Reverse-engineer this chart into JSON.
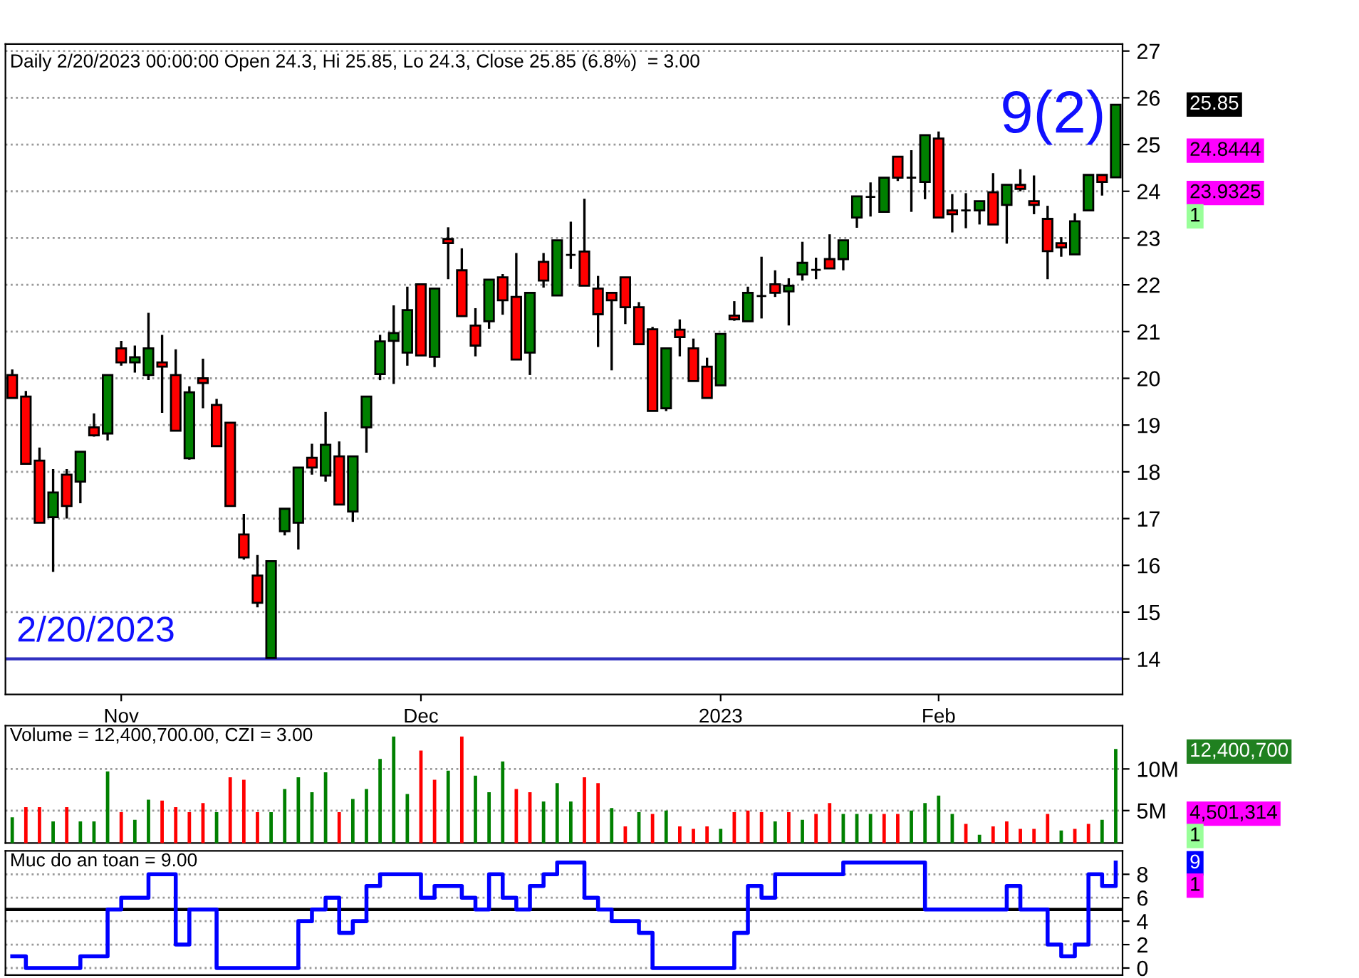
{
  "chart_data": [
    {
      "type": "candlestick",
      "title": "Daily 2/20/2023 00:00:00 Open 24.3, Hi 25.85, Lo 24.3, Close 25.85 (6.8%)  = 3.00",
      "categories": [
        null,
        null,
        null,
        null,
        null,
        null,
        null,
        null,
        "Nov",
        null,
        null,
        null,
        null,
        null,
        null,
        null,
        null,
        null,
        null,
        null,
        null,
        null,
        null,
        null,
        null,
        null,
        null,
        null,
        null,
        null,
        "Dec",
        null,
        null,
        null,
        null,
        null,
        null,
        null,
        null,
        null,
        null,
        null,
        null,
        null,
        null,
        null,
        null,
        null,
        null,
        null,
        null,
        null,
        "2023",
        null,
        null,
        null,
        null,
        null,
        null,
        null,
        null,
        null,
        null,
        null,
        null,
        null,
        null,
        null,
        "Feb",
        null,
        null,
        null,
        null,
        null,
        null,
        null,
        null,
        null,
        null,
        null,
        null,
        null
      ],
      "ohlc": [
        [
          20.07,
          20.19,
          19.58,
          19.58
        ],
        [
          19.61,
          19.73,
          18.17,
          18.17
        ],
        [
          18.24,
          18.52,
          16.91,
          16.91
        ],
        [
          17.03,
          18.06,
          15.86,
          17.56
        ],
        [
          17.94,
          18.06,
          17.0,
          17.27
        ],
        [
          17.79,
          18.43,
          17.33,
          18.43
        ],
        [
          18.95,
          19.25,
          18.75,
          18.78
        ],
        [
          18.82,
          20.07,
          18.67,
          20.07
        ],
        [
          20.64,
          20.8,
          20.27,
          20.34
        ],
        [
          20.34,
          20.7,
          20.12,
          20.45
        ],
        [
          20.07,
          21.4,
          19.96,
          20.64
        ],
        [
          20.34,
          20.93,
          19.26,
          20.25
        ],
        [
          20.07,
          20.62,
          18.88,
          18.88
        ],
        [
          18.29,
          19.83,
          18.26,
          19.7
        ],
        [
          20.0,
          20.42,
          19.36,
          19.9
        ],
        [
          19.43,
          19.56,
          18.55,
          18.55
        ],
        [
          19.05,
          19.05,
          17.27,
          17.27
        ],
        [
          16.66,
          17.1,
          16.12,
          16.17
        ],
        [
          15.78,
          16.22,
          15.1,
          15.2
        ],
        [
          14.02,
          16.09,
          14.02,
          16.09
        ],
        [
          16.73,
          17.21,
          16.64,
          17.21
        ],
        [
          16.91,
          18.09,
          16.34,
          18.09
        ],
        [
          18.3,
          18.6,
          17.94,
          18.09
        ],
        [
          17.92,
          19.28,
          17.79,
          18.58
        ],
        [
          18.33,
          18.65,
          17.3,
          17.3
        ],
        [
          17.15,
          18.33,
          16.93,
          18.33
        ],
        [
          18.95,
          19.61,
          18.41,
          19.61
        ],
        [
          20.09,
          20.93,
          19.96,
          20.79
        ],
        [
          20.8,
          21.56,
          19.88,
          20.97
        ],
        [
          20.55,
          21.96,
          20.27,
          21.46
        ],
        [
          22.01,
          22.01,
          20.49,
          20.49
        ],
        [
          20.46,
          21.92,
          20.24,
          21.92
        ],
        [
          22.98,
          23.23,
          22.12,
          22.89
        ],
        [
          22.31,
          22.78,
          21.33,
          21.33
        ],
        [
          21.13,
          21.5,
          20.47,
          20.7
        ],
        [
          21.22,
          22.11,
          21.06,
          22.11
        ],
        [
          22.16,
          22.23,
          21.36,
          21.67
        ],
        [
          21.74,
          22.68,
          20.4,
          20.4
        ],
        [
          20.55,
          21.83,
          20.07,
          21.83
        ],
        [
          22.49,
          22.68,
          21.94,
          22.09
        ],
        [
          21.77,
          22.95,
          21.77,
          22.95
        ],
        [
          22.64,
          23.35,
          22.34,
          22.64
        ],
        [
          22.71,
          23.84,
          21.98,
          21.98
        ],
        [
          21.92,
          22.19,
          20.67,
          21.37
        ],
        [
          21.83,
          21.83,
          20.17,
          21.67
        ],
        [
          22.16,
          22.16,
          21.16,
          21.52
        ],
        [
          21.52,
          21.63,
          20.73,
          20.73
        ],
        [
          21.05,
          21.1,
          19.3,
          19.3
        ],
        [
          19.36,
          20.64,
          19.3,
          20.64
        ],
        [
          21.04,
          21.26,
          20.47,
          20.88
        ],
        [
          20.64,
          20.85,
          19.94,
          19.94
        ],
        [
          20.25,
          20.44,
          19.58,
          19.58
        ],
        [
          19.85,
          20.95,
          19.85,
          20.95
        ],
        [
          21.34,
          21.65,
          21.23,
          21.26
        ],
        [
          21.22,
          21.96,
          21.22,
          21.83
        ],
        [
          21.76,
          22.6,
          21.28,
          21.76
        ],
        [
          22.01,
          22.31,
          21.74,
          21.83
        ],
        [
          21.86,
          22.14,
          21.13,
          21.98
        ],
        [
          22.22,
          22.92,
          22.09,
          22.47
        ],
        [
          22.32,
          22.58,
          22.12,
          22.32
        ],
        [
          22.55,
          23.08,
          22.35,
          22.35
        ],
        [
          22.55,
          22.95,
          22.31,
          22.95
        ],
        [
          23.44,
          23.89,
          23.22,
          23.89
        ],
        [
          23.88,
          24.19,
          23.46,
          23.88
        ],
        [
          23.56,
          24.29,
          23.56,
          24.29
        ],
        [
          24.74,
          24.74,
          24.22,
          24.29
        ],
        [
          24.29,
          24.88,
          23.56,
          24.29
        ],
        [
          24.2,
          25.2,
          23.83,
          25.2
        ],
        [
          25.13,
          25.28,
          23.44,
          23.44
        ],
        [
          23.59,
          23.94,
          23.12,
          23.51
        ],
        [
          23.59,
          23.96,
          23.21,
          23.59
        ],
        [
          23.59,
          23.79,
          23.29,
          23.79
        ],
        [
          23.98,
          24.39,
          23.29,
          23.29
        ],
        [
          23.71,
          24.14,
          22.88,
          24.14
        ],
        [
          24.14,
          24.47,
          24.0,
          24.05
        ],
        [
          23.79,
          24.34,
          23.51,
          23.71
        ],
        [
          23.41,
          23.69,
          22.12,
          22.72
        ],
        [
          22.89,
          23.02,
          22.6,
          22.8
        ],
        [
          22.65,
          23.53,
          22.65,
          23.36
        ],
        [
          23.59,
          24.35,
          23.59,
          24.35
        ],
        [
          24.35,
          24.35,
          23.91,
          24.2
        ],
        [
          24.3,
          25.85,
          24.3,
          25.85
        ]
      ],
      "ylim": [
        13.24,
        27.15
      ],
      "yticks": [
        14,
        15,
        16,
        17,
        18,
        19,
        20,
        21,
        22,
        23,
        24,
        25,
        26,
        27
      ],
      "grid": "y",
      "ref_lines": [
        {
          "axis": "y",
          "value": 14.0,
          "color": "#3030c0"
        }
      ],
      "annotations": [
        "9(2)",
        "2/20/2023",
        "25.85",
        "24.8444",
        "23.9325",
        "1"
      ]
    },
    {
      "type": "bar",
      "title": "Volume = 12,400,700.00, CZI = 3.00",
      "categories": [
        null,
        null,
        null,
        null,
        null,
        null,
        null,
        null,
        null,
        null,
        null,
        null,
        null,
        null,
        null,
        null,
        null,
        null,
        null,
        null,
        null,
        null,
        null,
        null,
        null,
        null,
        null,
        null,
        null,
        null,
        null,
        null,
        null,
        null,
        null,
        null,
        null,
        null,
        null,
        null,
        null,
        null,
        null,
        null,
        null,
        null,
        null,
        null,
        null,
        null,
        null,
        null,
        null,
        null,
        null,
        null,
        null,
        null,
        null,
        null,
        null,
        null,
        null,
        null,
        null,
        null,
        null,
        null,
        null,
        null,
        null,
        null,
        null,
        null,
        null,
        null,
        null,
        null,
        null,
        null,
        null,
        null
      ],
      "values": [
        4.2,
        5.4,
        5.4,
        3.7,
        5.4,
        3.7,
        3.7,
        9.7,
        4.8,
        3.9,
        6.3,
        6.2,
        5.4,
        4.8,
        5.9,
        4.8,
        9.0,
        8.7,
        4.8,
        4.8,
        7.6,
        9.0,
        7.2,
        9.6,
        4.8,
        6.4,
        7.6,
        11.2,
        13.9,
        7.0,
        12.2,
        8.7,
        9.8,
        13.9,
        9.2,
        7.2,
        10.9,
        7.6,
        7.2,
        6.1,
        8.3,
        6.1,
        9.0,
        8.3,
        5.3,
        3.1,
        4.8,
        4.6,
        5.0,
        3.1,
        2.8,
        3.1,
        2.8,
        4.8,
        5.0,
        4.8,
        3.7,
        4.8,
        3.9,
        4.6,
        5.9,
        4.6,
        4.6,
        4.6,
        4.6,
        4.6,
        5.0,
        5.9,
        6.8,
        4.6,
        3.4,
        2.1,
        3.1,
        3.7,
        2.8,
        2.8,
        4.6,
        2.6,
        2.8,
        3.4,
        3.9,
        12.4
      ],
      "colors": [
        "#008000",
        "#ff0000",
        "#ff0000",
        "#008000",
        "#ff0000",
        "#008000",
        "#008000",
        "#008000",
        "#ff0000",
        "#008000",
        "#008000",
        "#ff0000",
        "#ff0000",
        "#ff0000",
        "#ff0000",
        "#008000",
        "#ff0000",
        "#ff0000",
        "#ff0000",
        "#008000",
        "#008000",
        "#008000",
        "#008000",
        "#008000",
        "#ff0000",
        "#008000",
        "#008000",
        "#008000",
        "#008000",
        "#008000",
        "#ff0000",
        "#ff0000",
        "#008000",
        "#ff0000",
        "#008000",
        "#008000",
        "#008000",
        "#ff0000",
        "#ff0000",
        "#008000",
        "#008000",
        "#008000",
        "#ff0000",
        "#ff0000",
        "#008000",
        "#ff0000",
        "#008000",
        "#ff0000",
        "#008000",
        "#ff0000",
        "#ff0000",
        "#ff0000",
        "#008000",
        "#ff0000",
        "#ff0000",
        "#ff0000",
        "#008000",
        "#ff0000",
        "#008000",
        "#ff0000",
        "#ff0000",
        "#008000",
        "#008000",
        "#008000",
        "#ff0000",
        "#ff0000",
        "#008000",
        "#008000",
        "#008000",
        "#008000",
        "#ff0000",
        "#008000",
        "#ff0000",
        "#ff0000",
        "#ff0000",
        "#ff0000",
        "#ff0000",
        "#008000",
        "#ff0000",
        "#ff0000",
        "#008000",
        "#008000"
      ],
      "ylim": [
        1.1,
        15.2
      ],
      "yticks": [
        {
          "value": 5,
          "label": "5M"
        },
        {
          "value": 10,
          "label": "10M"
        }
      ],
      "grid": "y",
      "tick_labels": "y",
      "annotations": [
        "12,400,700",
        "4,501,314",
        "1"
      ]
    },
    {
      "type": "step",
      "title": "Muc do an toan = 9.00",
      "categories": [
        null,
        null,
        null,
        null,
        null,
        null,
        null,
        null,
        null,
        null,
        null,
        null,
        null,
        null,
        null,
        null,
        null,
        null,
        null,
        null,
        null,
        null,
        null,
        null,
        null,
        null,
        null,
        null,
        null,
        null,
        null,
        null,
        null,
        null,
        null,
        null,
        null,
        null,
        null,
        null,
        null,
        null,
        null,
        null,
        null,
        null,
        null,
        null,
        null,
        null,
        null,
        null,
        null,
        null,
        null,
        null,
        null,
        null,
        null,
        null,
        null,
        null,
        null,
        null,
        null,
        null,
        null,
        null,
        null,
        null,
        null,
        null,
        null,
        null,
        null,
        null,
        null,
        null,
        null,
        null,
        null,
        null
      ],
      "series": [
        {
          "color": "#0000ff",
          "values": [
            1,
            0,
            0,
            0,
            0,
            1,
            1,
            5,
            6,
            6,
            8,
            8,
            2,
            5,
            5,
            0,
            0,
            0,
            0,
            0,
            0,
            4,
            5,
            6,
            3,
            4,
            7,
            8,
            8,
            8,
            6,
            7,
            7,
            6,
            5,
            8,
            6,
            5,
            7,
            8,
            9,
            9,
            6,
            5,
            4,
            4,
            3,
            0,
            0,
            0,
            0,
            0,
            0,
            3,
            7,
            6,
            8,
            8,
            8,
            8,
            8,
            9,
            9,
            9,
            9,
            9,
            9,
            5,
            5,
            5,
            5,
            5,
            5,
            7,
            5,
            5,
            2,
            1,
            2,
            8,
            7,
            9
          ]
        }
      ],
      "ylim": [
        -0.6,
        10
      ],
      "yticks": [
        0,
        2,
        4,
        6,
        8
      ],
      "grid": "y",
      "tick_labels": "y",
      "ref_lines": [
        {
          "axis": "y",
          "value": 5,
          "color": "#000000"
        }
      ],
      "annotations": [
        "9",
        "1"
      ]
    }
  ]
}
